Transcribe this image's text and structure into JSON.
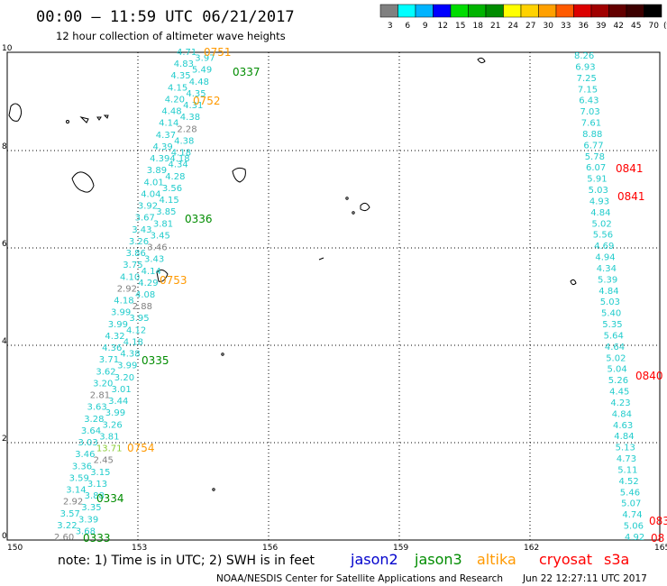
{
  "header": {
    "title": "00:00 – 11:59 UTC 06/21/2017",
    "subtitle": "12 hour collection of altimeter wave heights"
  },
  "colorbar": {
    "labels": [
      "3",
      "6",
      "9",
      "12",
      "15",
      "18",
      "21",
      "24",
      "27",
      "30",
      "33",
      "36",
      "39",
      "42",
      "45",
      "70"
    ],
    "unit": "(ft)",
    "colors": [
      "#808080",
      "#00ffff",
      "#00b4ff",
      "#0000ff",
      "#00dc00",
      "#00b400",
      "#008c00",
      "#ffff00",
      "#ffd200",
      "#ffa000",
      "#ff5a00",
      "#dc0000",
      "#a00000",
      "#640000",
      "#3c0000",
      "#000000"
    ]
  },
  "axes": {
    "lon_ticks": [
      "150",
      "153",
      "156",
      "159",
      "162",
      "165"
    ],
    "lat_ticks": [
      "0",
      "2",
      "4",
      "6",
      "8",
      "10"
    ]
  },
  "tracks": {
    "left": [
      {
        "v": "4.71",
        "c": "#22cccc"
      },
      {
        "v": "3.97",
        "c": "#22cccc"
      },
      {
        "v": "4.83",
        "c": "#22cccc"
      },
      {
        "v": "5.49",
        "c": "#22cccc"
      },
      {
        "v": "4.35",
        "c": "#22cccc"
      },
      {
        "v": "4.48",
        "c": "#22cccc"
      },
      {
        "v": "4.15",
        "c": "#22cccc"
      },
      {
        "v": "4.35",
        "c": "#22cccc"
      },
      {
        "v": "4.20",
        "c": "#22cccc"
      },
      {
        "v": "4.31",
        "c": "#22cccc"
      },
      {
        "v": "4.48",
        "c": "#22cccc"
      },
      {
        "v": "4.38",
        "c": "#22cccc"
      },
      {
        "v": "4.14",
        "c": "#22cccc"
      },
      {
        "v": "2.28",
        "c": "#808080"
      },
      {
        "v": "4.37",
        "c": "#22cccc"
      },
      {
        "v": "4.38",
        "c": "#22cccc"
      },
      {
        "v": "4.39",
        "c": "#22cccc"
      },
      {
        "v": "4.18",
        "c": "#22cccc"
      },
      {
        "v": "4.394.18",
        "c": "#22cccc"
      },
      {
        "v": "4.34",
        "c": "#22cccc"
      },
      {
        "v": "3.89",
        "c": "#22cccc"
      },
      {
        "v": "4.28",
        "c": "#22cccc"
      },
      {
        "v": "4.01",
        "c": "#22cccc"
      },
      {
        "v": "3.56",
        "c": "#22cccc"
      },
      {
        "v": "4.04",
        "c": "#22cccc"
      },
      {
        "v": "4.15",
        "c": "#22cccc"
      },
      {
        "v": "3.92",
        "c": "#22cccc"
      },
      {
        "v": "3.85",
        "c": "#22cccc"
      },
      {
        "v": "3.67",
        "c": "#22cccc"
      },
      {
        "v": "3.81",
        "c": "#22cccc"
      },
      {
        "v": "3.43",
        "c": "#22cccc"
      },
      {
        "v": "3.45",
        "c": "#22cccc"
      },
      {
        "v": "3.26",
        "c": "#22cccc"
      },
      {
        "v": "3.46",
        "c": "#808080"
      },
      {
        "v": "3.86",
        "c": "#22cccc"
      },
      {
        "v": "3.43",
        "c": "#22cccc"
      },
      {
        "v": "3.75",
        "c": "#22cccc"
      },
      {
        "v": "4.14",
        "c": "#22cccc"
      },
      {
        "v": "4.10",
        "c": "#22cccc"
      },
      {
        "v": "4.29",
        "c": "#22cccc"
      },
      {
        "v": "2.92",
        "c": "#808080"
      },
      {
        "v": "4.08",
        "c": "#22cccc"
      },
      {
        "v": "4.18",
        "c": "#22cccc"
      },
      {
        "v": "2.88",
        "c": "#808080"
      },
      {
        "v": "3.99",
        "c": "#22cccc"
      },
      {
        "v": "3.95",
        "c": "#22cccc"
      },
      {
        "v": "3.99",
        "c": "#22cccc"
      },
      {
        "v": "4.12",
        "c": "#22cccc"
      },
      {
        "v": "4.32",
        "c": "#22cccc"
      },
      {
        "v": "4.18",
        "c": "#22cccc"
      },
      {
        "v": "4.36",
        "c": "#22cccc"
      },
      {
        "v": "4.38",
        "c": "#22cccc"
      },
      {
        "v": "3.71",
        "c": "#22cccc"
      },
      {
        "v": "3.99",
        "c": "#22cccc"
      },
      {
        "v": "3.62",
        "c": "#22cccc"
      },
      {
        "v": "3.20",
        "c": "#22cccc"
      },
      {
        "v": "3.20",
        "c": "#22cccc"
      },
      {
        "v": "3.01",
        "c": "#22cccc"
      },
      {
        "v": "2.81",
        "c": "#808080"
      },
      {
        "v": "3.44",
        "c": "#22cccc"
      },
      {
        "v": "3.63",
        "c": "#22cccc"
      },
      {
        "v": "3.99",
        "c": "#22cccc"
      },
      {
        "v": "3.28",
        "c": "#22cccc"
      },
      {
        "v": "3.26",
        "c": "#22cccc"
      },
      {
        "v": "3.64",
        "c": "#22cccc"
      },
      {
        "v": "3.81",
        "c": "#22cccc"
      },
      {
        "v": "3.03",
        "c": "#22cccc"
      },
      {
        "v": "13.71",
        "c": "#88cc33"
      },
      {
        "v": "3.46",
        "c": "#22cccc"
      },
      {
        "v": "2.45",
        "c": "#808080"
      },
      {
        "v": "3.36",
        "c": "#22cccc"
      },
      {
        "v": "3.15",
        "c": "#22cccc"
      },
      {
        "v": "3.59",
        "c": "#22cccc"
      },
      {
        "v": "3.13",
        "c": "#22cccc"
      },
      {
        "v": "3.14",
        "c": "#22cccc"
      },
      {
        "v": "3.88",
        "c": "#22cccc"
      },
      {
        "v": "2.92",
        "c": "#808080"
      },
      {
        "v": "3.35",
        "c": "#22cccc"
      },
      {
        "v": "3.57",
        "c": "#22cccc"
      },
      {
        "v": "3.39",
        "c": "#22cccc"
      },
      {
        "v": "3.22",
        "c": "#22cccc"
      },
      {
        "v": "3.68",
        "c": "#22cccc"
      },
      {
        "v": "2.60",
        "c": "#808080"
      }
    ],
    "right": [
      "8.26",
      "6.93",
      "7.25",
      "7.15",
      "6.43",
      "7.03",
      "7.61",
      "8.88",
      "6.77",
      "5.78",
      "6.07",
      "5.91",
      "5.03",
      "4.93",
      "4.84",
      "5.02",
      "5.56",
      "4.69",
      "4.94",
      "4.34",
      "5.39",
      "4.84",
      "5.03",
      "5.40",
      "5.35",
      "5.64",
      "4.64",
      "5.02",
      "5.04",
      "5.26",
      "4.45",
      "4.23",
      "4.84",
      "4.63",
      "4.84",
      "5.13",
      "4.73",
      "5.11",
      "4.52",
      "5.46",
      "5.07",
      "4.74",
      "5.06",
      "4.92"
    ],
    "time_labels": [
      {
        "t": "0751",
        "c": "#ff9900"
      },
      {
        "t": "0337",
        "c": "#008c00"
      },
      {
        "t": "0752",
        "c": "#ff9900"
      },
      {
        "t": "0336",
        "c": "#008c00"
      },
      {
        "t": "0753",
        "c": "#ff9900"
      },
      {
        "t": "0335",
        "c": "#008c00"
      },
      {
        "t": "0754",
        "c": "#ff9900"
      },
      {
        "t": "0334",
        "c": "#008c00"
      },
      {
        "t": "0333",
        "c": "#008c00"
      },
      {
        "t": "0841",
        "c": "#ff0000"
      },
      {
        "t": "0841",
        "c": "#ff0000"
      },
      {
        "t": "0840",
        "c": "#ff0000"
      },
      {
        "t": "083",
        "c": "#ff0000"
      },
      {
        "t": "08",
        "c": "#ff0000"
      }
    ]
  },
  "footer": {
    "note": "note:  1) Time is in UTC; 2) SWH is in feet",
    "legend": [
      {
        "label": "jason2",
        "color": "#0000cc"
      },
      {
        "label": "jason3",
        "color": "#008c00"
      },
      {
        "label": "altika",
        "color": "#ff9900"
      },
      {
        "label": "cryosat",
        "color": "#ff0000"
      },
      {
        "label": "s3a",
        "color": "#ff0000"
      }
    ],
    "credit": "NOAA/NESDIS Center for Satellite Applications and Research",
    "timestamp": "Jun 22 12:27:11 UTC 2017"
  }
}
